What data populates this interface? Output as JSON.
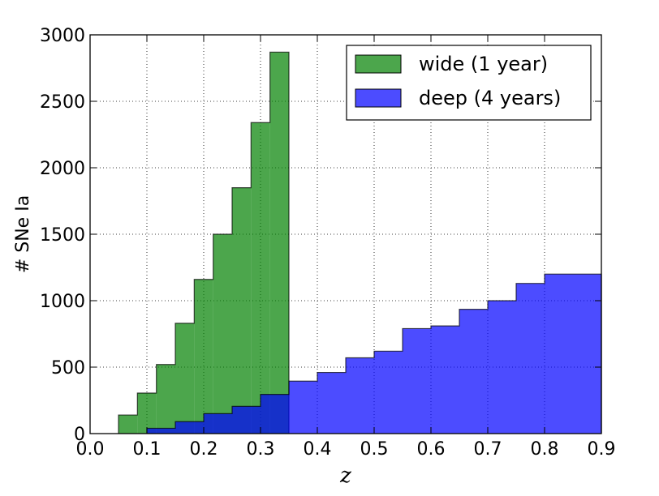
{
  "chart_data": {
    "type": "histogram",
    "title": "",
    "xlabel": "z",
    "ylabel": "# SNe Ia",
    "xlim": [
      0.0,
      0.9
    ],
    "ylim": [
      0,
      3000
    ],
    "xticks": [
      "0.0",
      "0.1",
      "0.2",
      "0.3",
      "0.4",
      "0.5",
      "0.6",
      "0.7",
      "0.8",
      "0.9"
    ],
    "yticks": [
      "0",
      "500",
      "1000",
      "1500",
      "2000",
      "2500",
      "3000"
    ],
    "grid": true,
    "legend_position": "top-right",
    "series": [
      {
        "name": "wide (1 year)",
        "color": "#008000",
        "alpha": 0.7,
        "bin_edges": [
          0.05,
          0.0833,
          0.1167,
          0.15,
          0.1833,
          0.2167,
          0.25,
          0.2833,
          0.3167,
          0.35
        ],
        "values": [
          140,
          305,
          520,
          830,
          1160,
          1500,
          1850,
          2340,
          2870
        ]
      },
      {
        "name": "deep (4 years)",
        "color": "#0000ff",
        "alpha": 0.7,
        "bin_edges": [
          0.1,
          0.15,
          0.2,
          0.25,
          0.3,
          0.35,
          0.4,
          0.45,
          0.5,
          0.55,
          0.6,
          0.65,
          0.7,
          0.75,
          0.8,
          0.85,
          0.9
        ],
        "values": [
          40,
          90,
          150,
          205,
          295,
          395,
          460,
          570,
          620,
          790,
          810,
          935,
          1000,
          1130,
          1200,
          1200
        ]
      }
    ]
  }
}
